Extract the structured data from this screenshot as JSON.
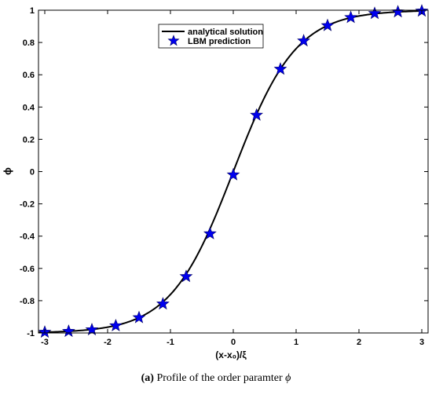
{
  "chart_data": {
    "type": "line",
    "xlabel": "(x-x₀)/ξ",
    "ylabel": "ϕ",
    "xlim": [
      -3.1,
      3.1
    ],
    "ylim": [
      -1,
      1
    ],
    "xticks": [
      "-3",
      "-2",
      "-1",
      "0",
      "1",
      "2",
      "3"
    ],
    "yticks": [
      "-1",
      "-0.8",
      "-0.6",
      "-0.4",
      "-0.2",
      "0",
      "0.2",
      "0.4",
      "0.6",
      "0.8",
      "1"
    ],
    "grid": false,
    "legend_position": "top-center",
    "series": [
      {
        "name": "analytical solution",
        "kind": "line",
        "color": "#000000",
        "function": "tanh",
        "x_range": [
          -3.1,
          3.0
        ]
      },
      {
        "name": "LBM prediction",
        "kind": "marker-star",
        "color": "#0000ee",
        "x": [
          -3.0,
          -2.62,
          -2.25,
          -1.87,
          -1.5,
          -1.12,
          -0.75,
          -0.37,
          0.0,
          0.37,
          0.75,
          1.12,
          1.5,
          1.87,
          2.25,
          2.62,
          3.0
        ],
        "y": [
          -0.995,
          -0.99,
          -0.98,
          -0.955,
          -0.905,
          -0.82,
          -0.65,
          -0.385,
          -0.02,
          0.35,
          0.635,
          0.81,
          0.905,
          0.955,
          0.98,
          0.99,
          0.995
        ]
      }
    ]
  },
  "caption": {
    "label": "(a)",
    "text": " Profile of the order paramter ",
    "symbol": "ϕ"
  }
}
